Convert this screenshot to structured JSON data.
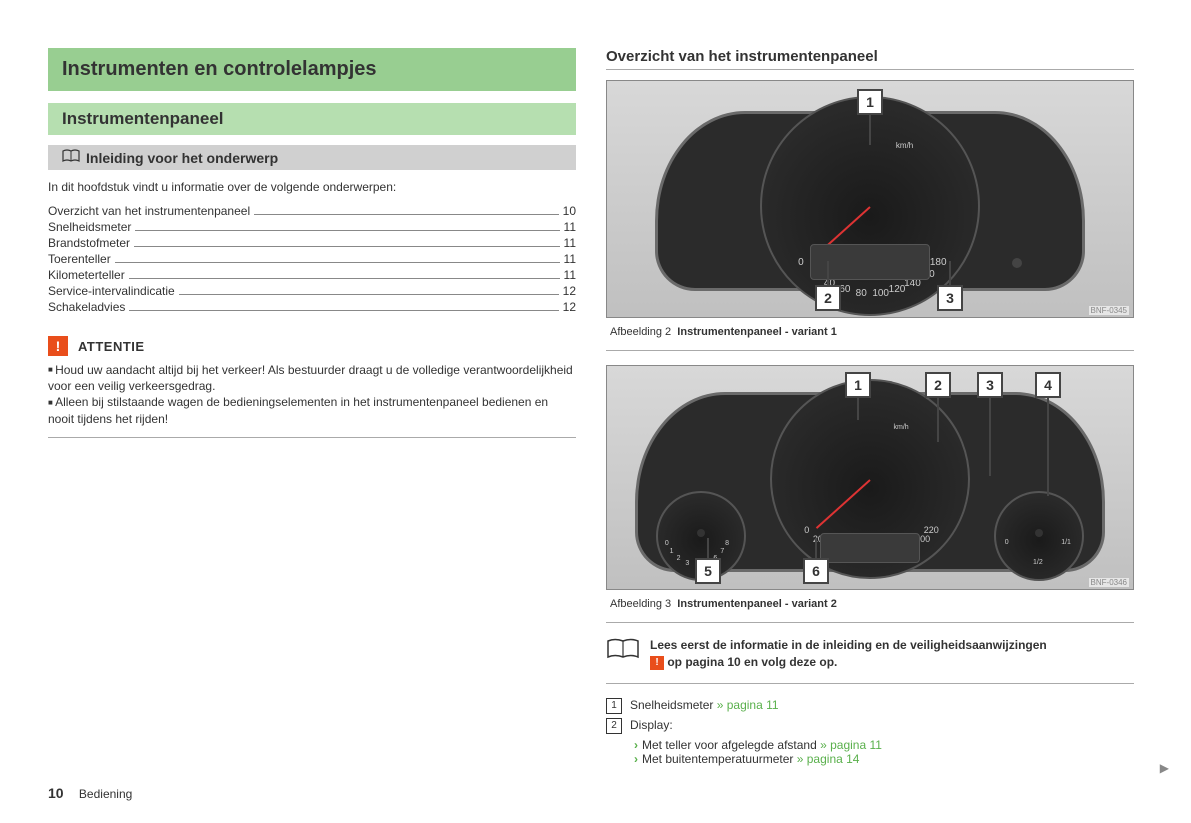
{
  "left": {
    "h1": "Instrumenten en controlelampjes",
    "h2": "Instrumentenpaneel",
    "h3": "Inleiding voor het onderwerp",
    "intro": "In dit hoofdstuk vindt u informatie over de volgende onderwerpen:",
    "toc": [
      {
        "label": "Overzicht van het instrumentenpaneel",
        "page": "10"
      },
      {
        "label": "Snelheidsmeter",
        "page": "11"
      },
      {
        "label": "Brandstofmeter",
        "page": "11"
      },
      {
        "label": "Toerenteller",
        "page": "11"
      },
      {
        "label": "Kilometerteller",
        "page": "11"
      },
      {
        "label": "Service-intervalindicatie",
        "page": "12"
      },
      {
        "label": "Schakeladvies",
        "page": "12"
      }
    ],
    "attentie_title": "ATTENTIE",
    "attentie_items": [
      "Houd uw aandacht altijd bij het verkeer! Als bestuurder draagt u de volledige verantwoordelijkheid voor een veilig verkeersgedrag.",
      "Alleen bij stilstaande wagen de bedieningselementen in het instrumentenpaneel bedienen en nooit tijdens het rijden!"
    ]
  },
  "right": {
    "heading": "Overzicht van het instrumentenpaneel",
    "fig1": {
      "ref": "BNF-0345",
      "caption_prefix": "Afbeelding 2",
      "caption_bold": "Instrumentenpaneel - variant 1",
      "callouts": [
        "1",
        "2",
        "3"
      ],
      "speedo_ticks": [
        "0",
        "20",
        "40",
        "60",
        "80",
        "100",
        "120",
        "140",
        "160",
        "180"
      ],
      "unit": "km/h"
    },
    "fig2": {
      "ref": "BNF-0346",
      "caption_prefix": "Afbeelding 3",
      "caption_bold": "Instrumentenpaneel - variant 2",
      "callouts": [
        "1",
        "2",
        "3",
        "4",
        "5",
        "6"
      ],
      "speedo_ticks": [
        "0",
        "20",
        "40",
        "60",
        "80",
        "100",
        "120",
        "140",
        "160",
        "180",
        "200",
        "220"
      ],
      "unit": "km/h",
      "tach_ticks": [
        "0",
        "1",
        "2",
        "3",
        "4",
        "5",
        "6",
        "7",
        "8"
      ],
      "fuel_ticks": [
        "0",
        "1/2",
        "1/1"
      ]
    },
    "read_first_line1": "Lees eerst de informatie in de inleiding en de veiligheidsaanwijzingen",
    "read_first_line2_suffix": " op pagina 10 en volg deze op.",
    "legend": [
      {
        "num": "1",
        "text": "Snelheidsmeter ",
        "link": "» pagina 11"
      },
      {
        "num": "2",
        "text": "Display:"
      }
    ],
    "sublist": [
      {
        "text": "Met teller voor afgelegde afstand ",
        "link": "» pagina 11"
      },
      {
        "text": "Met buitentemperatuurmeter ",
        "link": "» pagina 14"
      }
    ]
  },
  "footer": {
    "page": "10",
    "section": "Bediening"
  },
  "colors": {
    "h1_bg": "#98ce91",
    "h2_bg": "#b6dfb0",
    "warn": "#e94e1b",
    "link": "#5ab04c"
  }
}
